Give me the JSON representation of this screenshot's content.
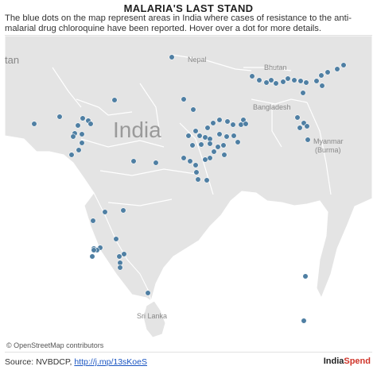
{
  "header": {
    "title": "MALARIA'S LAST STAND",
    "description": "The blue dots on the map represent areas in India where cases of resistance to the anti-malarial drug chloroquine have been reported. Hover over a dot for more details."
  },
  "map": {
    "labels": {
      "country_main": "India",
      "nepal": "Nepal",
      "bhutan": "Bhutan",
      "bangladesh": "Bangladesh",
      "myanmar": "Myanmar\n(Burma)",
      "sri_lanka": "Sri Lanka",
      "partial_left": "tan"
    },
    "colors": {
      "dot": "#4f7fa3",
      "land": "#e4e4e4",
      "border": "#ffffff",
      "label": "#888888"
    },
    "attribution": "© OpenStreetMap contributors"
  },
  "footer": {
    "source_prefix": "Source: NVBDCP, ",
    "source_link": "http://j.mp/13sKoeS",
    "logo_part1": "India",
    "logo_part2": "Spend"
  }
}
